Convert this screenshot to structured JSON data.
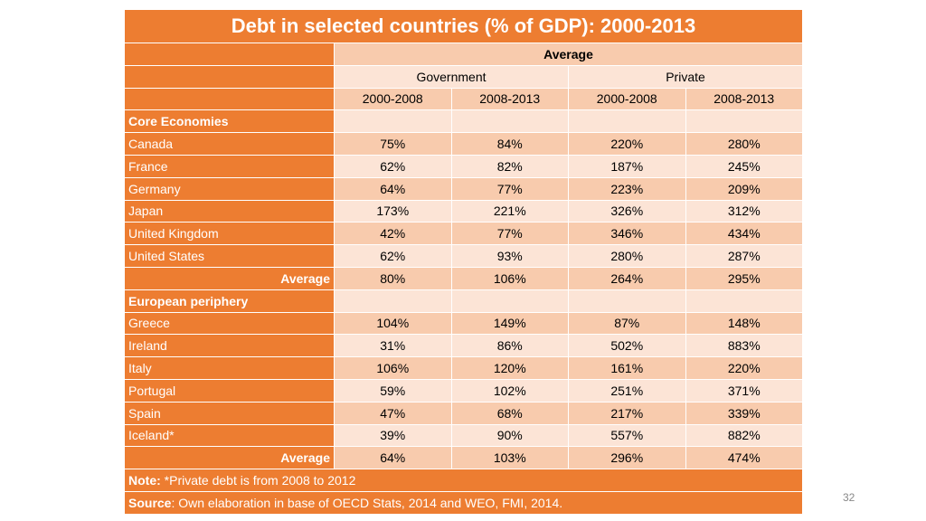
{
  "table": {
    "title": "Debt in selected countries (% of GDP): 2000-2013",
    "header_average": "Average",
    "header_government": "Government",
    "header_private": "Private",
    "periods": [
      "2000-2008",
      "2008-2013",
      "2000-2008",
      "2008-2013"
    ],
    "sections": [
      {
        "name": "Core Economies",
        "rows": [
          {
            "label": "Canada",
            "values": [
              "75%",
              "84%",
              "220%",
              "280%"
            ]
          },
          {
            "label": "France",
            "values": [
              "62%",
              "82%",
              "187%",
              "245%"
            ]
          },
          {
            "label": "Germany",
            "values": [
              "64%",
              "77%",
              "223%",
              "209%"
            ]
          },
          {
            "label": "Japan",
            "values": [
              "173%",
              "221%",
              "326%",
              "312%"
            ]
          },
          {
            "label": "United Kingdom",
            "values": [
              "42%",
              "77%",
              "346%",
              "434%"
            ]
          },
          {
            "label": "United States",
            "values": [
              "62%",
              "93%",
              "280%",
              "287%"
            ]
          }
        ],
        "average": {
          "label": "Average",
          "values": [
            "80%",
            "106%",
            "264%",
            "295%"
          ]
        }
      },
      {
        "name": "European periphery",
        "rows": [
          {
            "label": "Greece",
            "values": [
              "104%",
              "149%",
              "87%",
              "148%"
            ]
          },
          {
            "label": "Ireland",
            "values": [
              "31%",
              "86%",
              "502%",
              "883%"
            ]
          },
          {
            "label": "Italy",
            "values": [
              "106%",
              "120%",
              "161%",
              "220%"
            ]
          },
          {
            "label": "Portugal",
            "values": [
              "59%",
              "102%",
              "251%",
              "371%"
            ]
          },
          {
            "label": "Spain",
            "values": [
              "47%",
              "68%",
              "217%",
              "339%"
            ]
          },
          {
            "label": "Iceland*",
            "values": [
              "39%",
              "90%",
              "557%",
              "882%"
            ]
          }
        ],
        "average": {
          "label": "Average",
          "values": [
            "64%",
            "103%",
            "296%",
            "474%"
          ]
        }
      }
    ],
    "note_label": "Note:",
    "note_text": " *Private debt is from 2008 to 2012",
    "source_label": "Source",
    "source_text": ": Own elaboration in base of OECD Stats, 2014 and WEO, FMI, 2014."
  },
  "page_number": "32",
  "colors": {
    "header_orange": "#ed7d31",
    "row_dark": "#f8cbad",
    "row_light": "#fce4d6"
  }
}
